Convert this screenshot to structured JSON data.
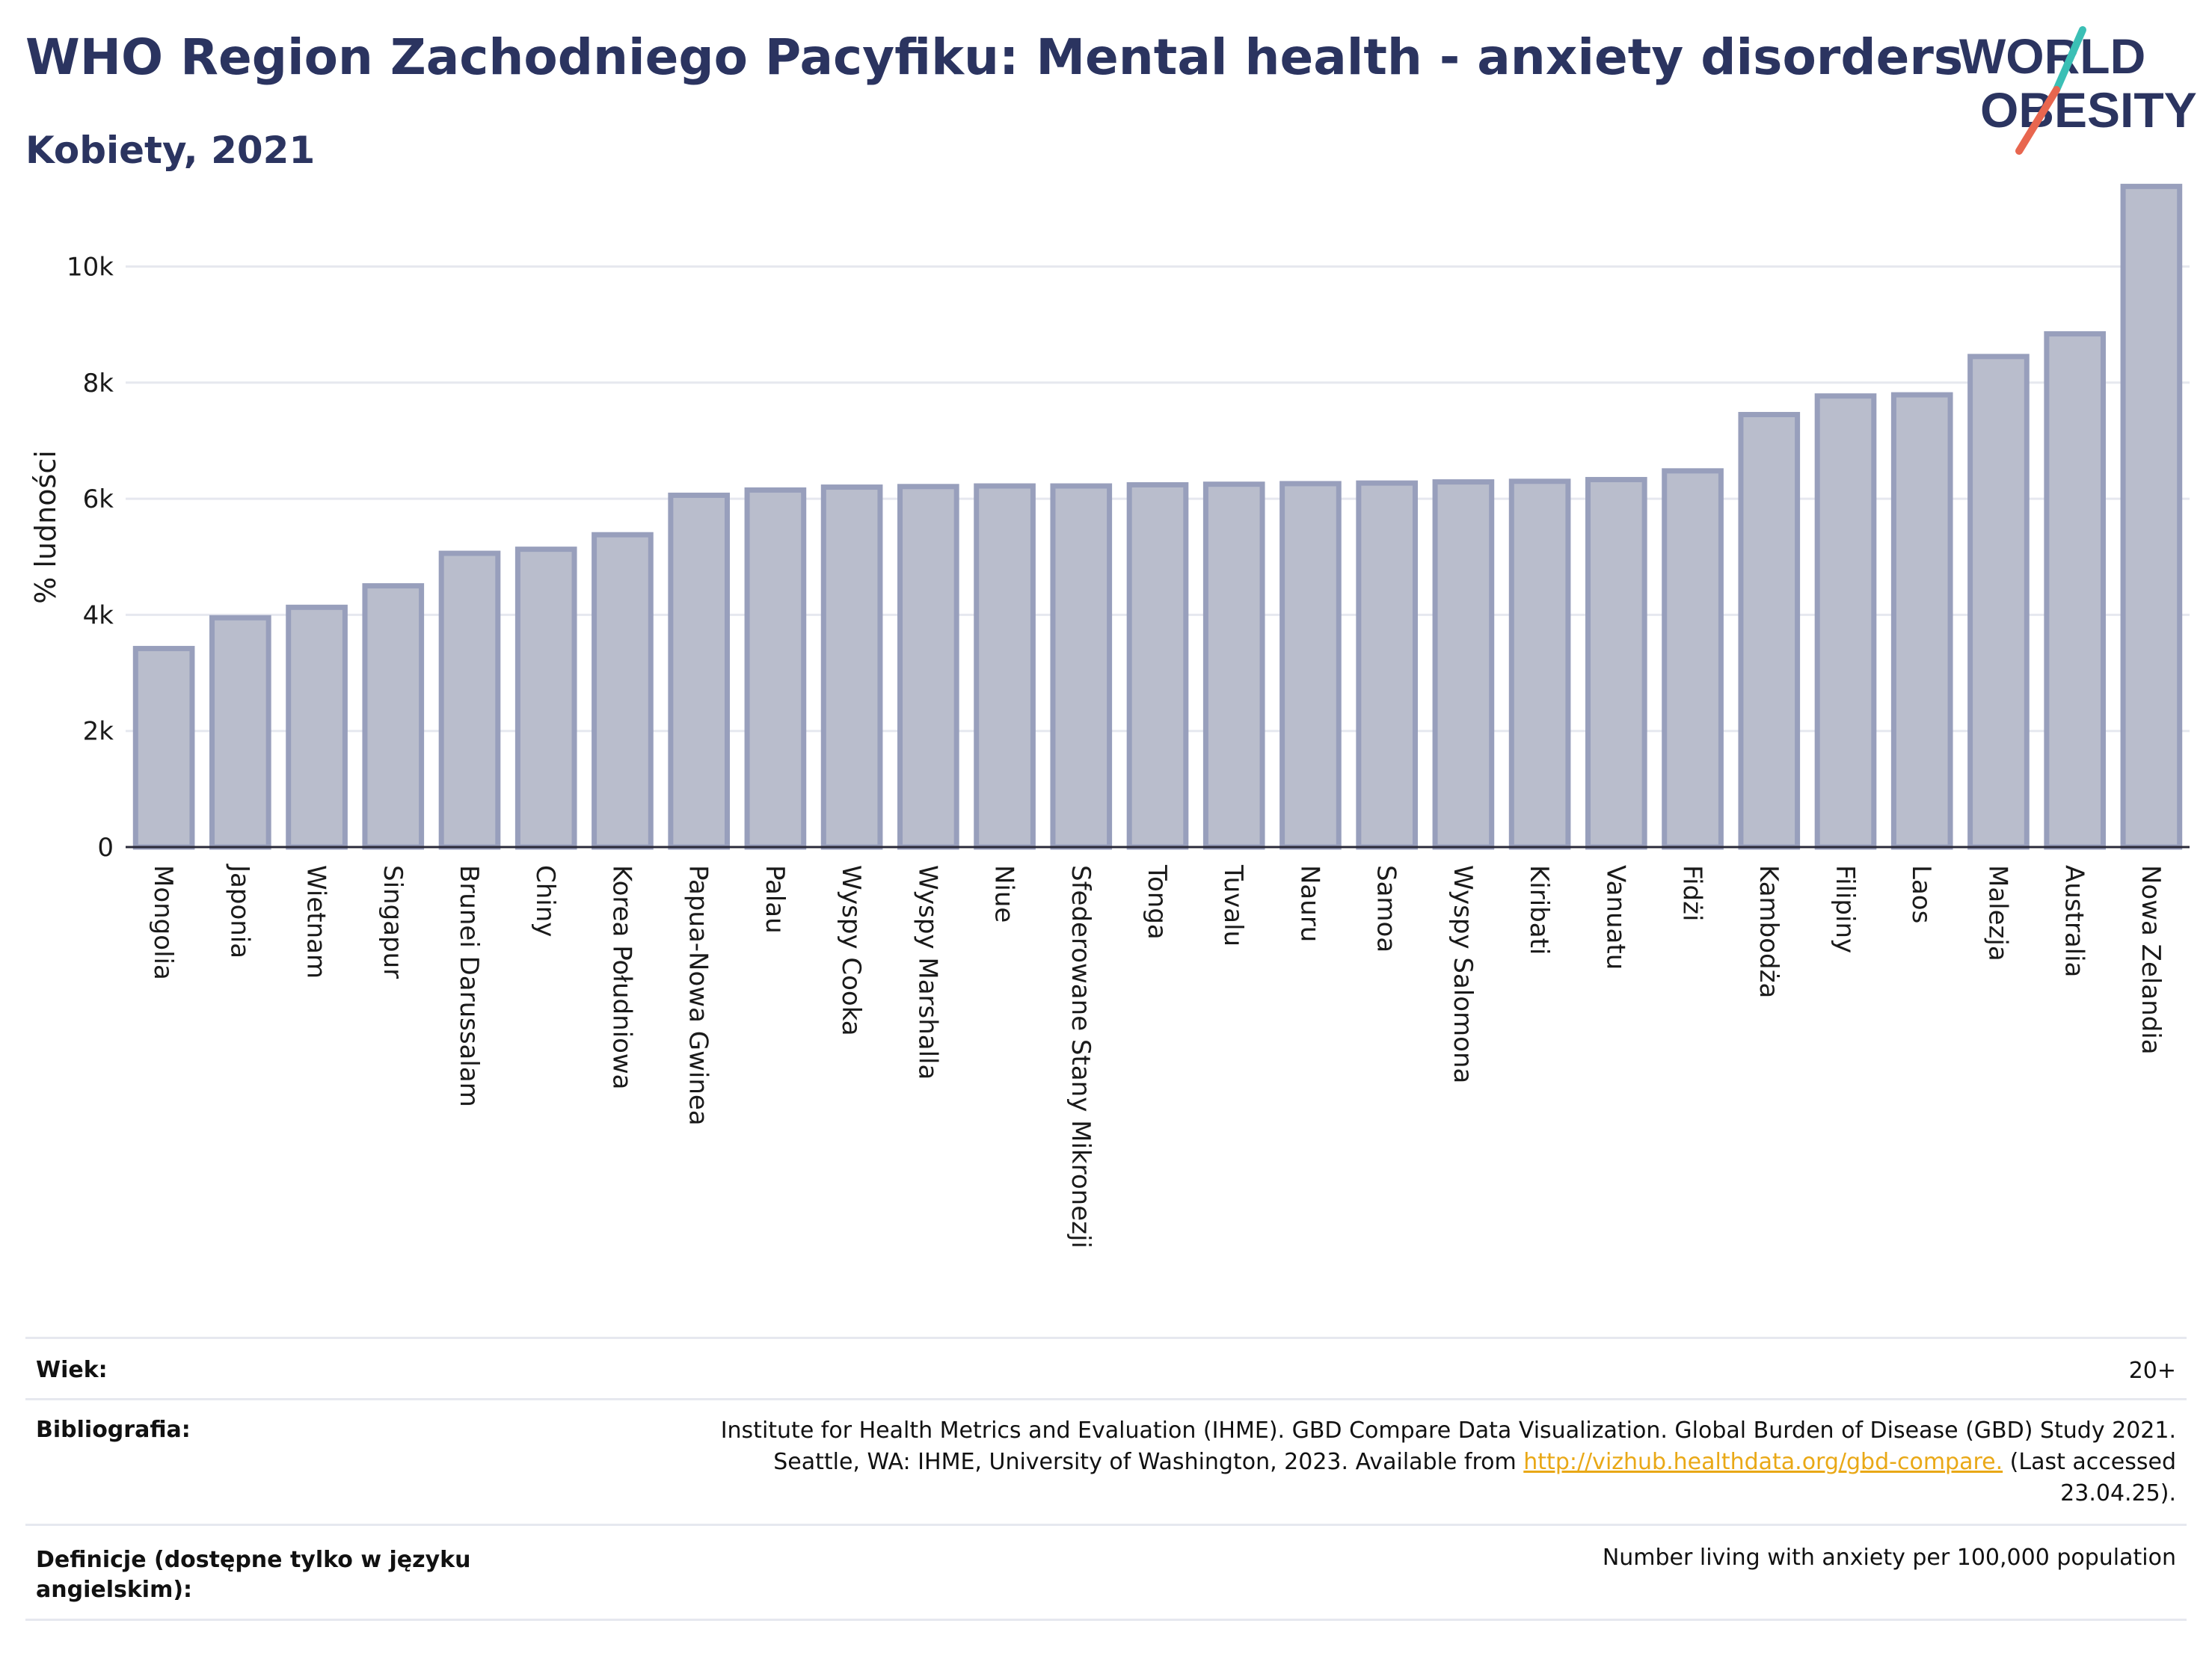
{
  "header": {
    "title": "WHO Region Zachodniego Pacyfiku: Mental health - anxiety disorders",
    "subtitle": "Kobiety, 2021"
  },
  "logo": {
    "line1": "WORLD",
    "line2": "OBESITY",
    "text_color": "#2b3460",
    "slash_colors": [
      "#3bbfb5",
      "#e8664f"
    ]
  },
  "colors": {
    "bar_fill": "#b9bdcc",
    "bar_stroke": "#989fbc",
    "grid": "#e6e8ef",
    "axis": "#2b2b3a"
  },
  "chart_data": {
    "type": "bar",
    "ylabel": "% ludności",
    "ylim": [
      0,
      11500
    ],
    "yticks": [
      0,
      2000,
      4000,
      6000,
      8000,
      10000
    ],
    "ytick_labels": [
      "0",
      "2k",
      "4k",
      "6k",
      "8k",
      "10k"
    ],
    "categories": [
      "Mongolia",
      "Japonia",
      "Wietnam",
      "Singapur",
      "Brunei Darussalam",
      "Chiny",
      "Korea Południowa",
      "Papua-Nowa Gwinea",
      "Palau",
      "Wyspy Cooka",
      "Wyspy Marshalla",
      "Niue",
      "Sfederowane Stany Mikronezji",
      "Tonga",
      "Tuvalu",
      "Nauru",
      "Samoa",
      "Wyspy Salomona",
      "Kiribati",
      "Vanuatu",
      "Fidżi",
      "Kambodża",
      "Filipiny",
      "Laos",
      "Malezja",
      "Australia",
      "Nowa Zelandia"
    ],
    "values": [
      3420,
      3950,
      4130,
      4500,
      5060,
      5130,
      5380,
      6060,
      6150,
      6200,
      6210,
      6220,
      6220,
      6240,
      6250,
      6260,
      6270,
      6290,
      6300,
      6330,
      6480,
      7450,
      7770,
      7790,
      8450,
      8840,
      11380
    ],
    "grid": true,
    "legend": "none"
  },
  "meta": {
    "age_label": "Wiek:",
    "age_value": "20+",
    "bib_label": "Bibliografia:",
    "bib_line1": "Institute for Health Metrics and Evaluation (IHME). GBD Compare Data Visualization. Global Burden of Disease (GBD) Study 2021.",
    "bib_line2_pre": "Seattle, WA: IHME, University of Washington, 2023. Available from ",
    "bib_link": "http://vizhub.healthdata.org/gbd-compare.",
    "bib_line2_post": " (Last accessed",
    "bib_line3": "23.04.25).",
    "def_label": "Definicje (dostępne tylko w języku angielskim):",
    "def_value": "Number living with anxiety per 100,000 population"
  }
}
